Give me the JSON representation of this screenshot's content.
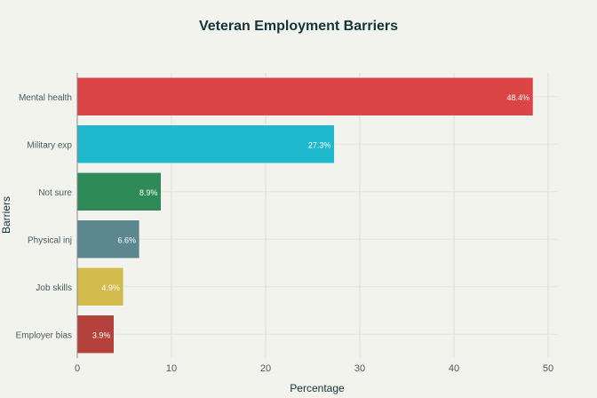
{
  "chart_data": {
    "type": "bar",
    "orientation": "horizontal",
    "title": "Veteran Employment Barriers",
    "xlabel": "Percentage",
    "ylabel": "Barriers",
    "xlim": [
      0,
      52
    ],
    "xticks": [
      0,
      10,
      20,
      30,
      40,
      50
    ],
    "grid": true,
    "categories": [
      "Mental health",
      "Military exp",
      "Not sure",
      "Physical inj",
      "Job skills",
      "Employer bias"
    ],
    "values": [
      48.4,
      27.3,
      8.9,
      6.6,
      4.9,
      3.9
    ],
    "data_labels": [
      "48.4%",
      "27.3%",
      "8.9%",
      "6.6%",
      "4.9%",
      "3.9%"
    ],
    "colors": [
      "#DB4545",
      "#1FB8CD",
      "#2E8B57",
      "#5D878F",
      "#D2BA4C",
      "#B4413C"
    ]
  }
}
